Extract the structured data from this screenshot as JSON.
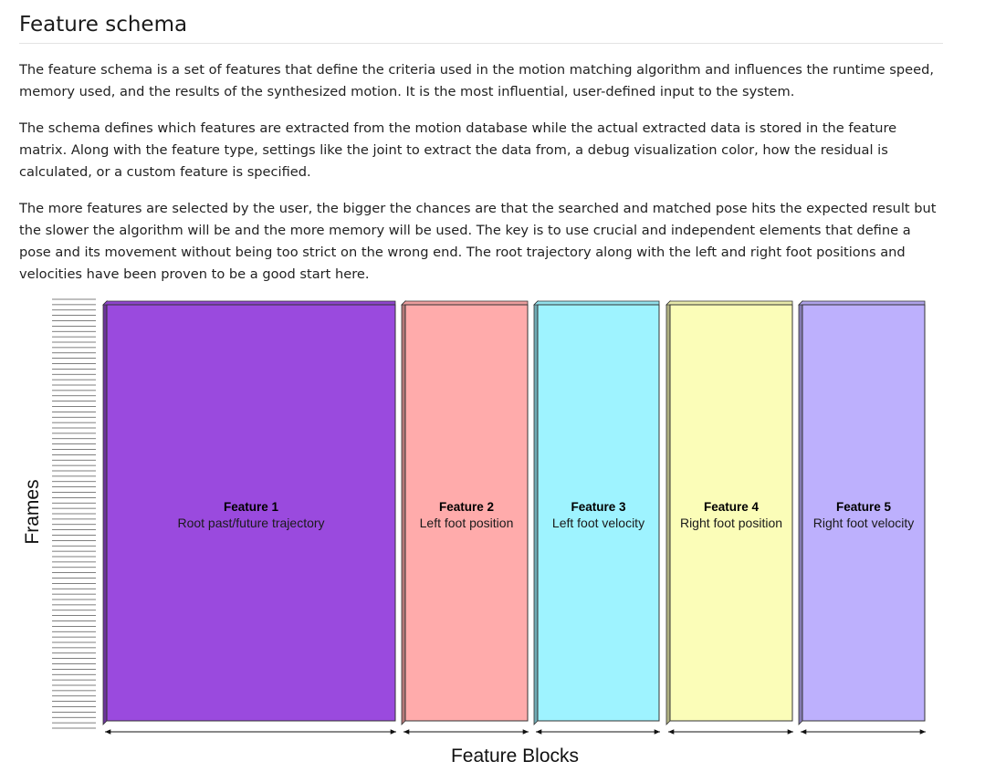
{
  "heading": {
    "title": "Feature schema"
  },
  "paragraphs": [
    "The feature schema is a set of features that define the criteria used in the motion matching algorithm and influences the runtime speed, memory used, and the results of the synthesized motion. It is the most influential, user-defined input to the system.",
    "The schema defines which features are extracted from the motion database while the actual extracted data is stored in the feature matrix. Along with the feature type, settings like the joint to extract the data from, a debug visualization color, how the residual is calculated, or a custom feature is specified.",
    "The more features are selected by the user, the bigger the chances are that the searched and matched pose hits the expected result but the slower the algorithm will be and the more memory will be used. The key is to use crucial and independent elements that define a pose and its movement without being too strict on the wrong end. The root trajectory along with the left and right foot positions and velocities have been proven to be a good start here."
  ],
  "diagram": {
    "y_axis_label": "Frames",
    "x_axis_label": "Feature Blocks",
    "features": [
      {
        "name": "Feature 1",
        "description": "Root past/future trajectory",
        "color": "#9a4ade"
      },
      {
        "name": "Feature 2",
        "description": "Left foot position",
        "color": "#ffabab"
      },
      {
        "name": "Feature 3",
        "description": "Left foot velocity",
        "color": "#9ef3ff"
      },
      {
        "name": "Feature 4",
        "description": "Right foot position",
        "color": "#fbfdb8"
      },
      {
        "name": "Feature 5",
        "description": "Right foot velocity",
        "color": "#bdb0fd"
      }
    ]
  }
}
